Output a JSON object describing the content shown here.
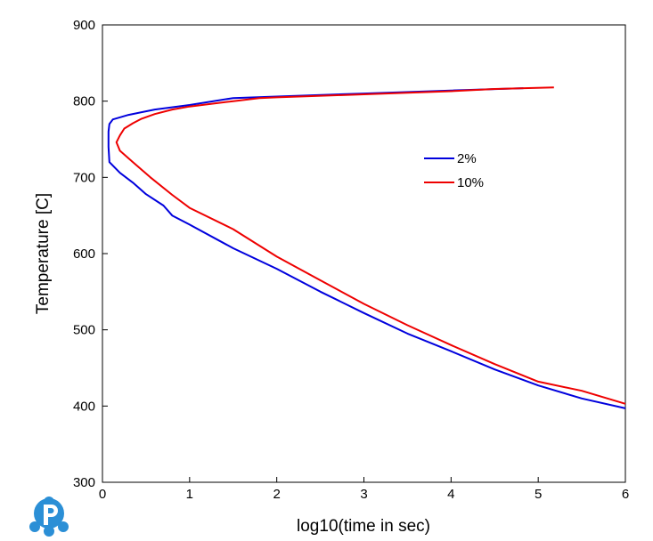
{
  "chart_data": {
    "type": "line",
    "title": "",
    "xlabel": "log10(time in sec)",
    "ylabel": "Temperature [C]",
    "xlim": [
      0,
      6
    ],
    "ylim": [
      300,
      900
    ],
    "x_ticks": [
      0,
      1,
      2,
      3,
      4,
      5,
      6
    ],
    "y_ticks": [
      300,
      400,
      500,
      600,
      700,
      800,
      900
    ],
    "grid": false,
    "legend_position": "upper-right-center",
    "series": [
      {
        "name": "2%",
        "color": "#0000dd",
        "points": [
          [
            4.83,
            817
          ],
          [
            4.0,
            814
          ],
          [
            3.0,
            810
          ],
          [
            2.0,
            806
          ],
          [
            1.5,
            804
          ],
          [
            1.0,
            795
          ],
          [
            0.6,
            789
          ],
          [
            0.3,
            782
          ],
          [
            0.12,
            776
          ],
          [
            0.08,
            770
          ],
          [
            0.07,
            760
          ],
          [
            0.07,
            740
          ],
          [
            0.08,
            720
          ],
          [
            0.2,
            706
          ],
          [
            0.35,
            693
          ],
          [
            0.5,
            678
          ],
          [
            0.7,
            663
          ],
          [
            0.8,
            650
          ],
          [
            1.0,
            638
          ],
          [
            1.5,
            607
          ],
          [
            2.0,
            580
          ],
          [
            2.5,
            550
          ],
          [
            3.0,
            522
          ],
          [
            3.5,
            495
          ],
          [
            4.0,
            472
          ],
          [
            4.5,
            448
          ],
          [
            5.0,
            427
          ],
          [
            5.5,
            410
          ],
          [
            6.0,
            397
          ]
        ]
      },
      {
        "name": "10%",
        "color": "#ee0000",
        "points": [
          [
            5.18,
            818
          ],
          [
            4.5,
            816
          ],
          [
            4.0,
            813
          ],
          [
            3.0,
            809
          ],
          [
            2.0,
            805
          ],
          [
            1.8,
            804
          ],
          [
            1.5,
            800
          ],
          [
            1.0,
            793
          ],
          [
            0.8,
            789
          ],
          [
            0.6,
            783
          ],
          [
            0.45,
            777
          ],
          [
            0.35,
            771
          ],
          [
            0.25,
            764
          ],
          [
            0.2,
            755
          ],
          [
            0.16,
            746
          ],
          [
            0.2,
            735
          ],
          [
            0.35,
            720
          ],
          [
            0.55,
            700
          ],
          [
            0.8,
            677
          ],
          [
            1.0,
            660
          ],
          [
            1.5,
            632
          ],
          [
            2.0,
            596
          ],
          [
            2.5,
            565
          ],
          [
            3.0,
            534
          ],
          [
            3.5,
            506
          ],
          [
            4.0,
            480
          ],
          [
            4.5,
            455
          ],
          [
            5.0,
            432
          ],
          [
            5.5,
            420
          ],
          [
            6.0,
            403
          ]
        ]
      }
    ]
  }
}
